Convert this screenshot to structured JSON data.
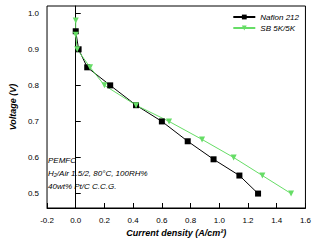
{
  "chart_data": {
    "type": "line",
    "x_label": "Current density (A/cm²)",
    "y_label": "Voltage (V)",
    "annotations": [
      "PEMFC",
      "H₂/Air 1.5/2, 80°C, 100RH%",
      "40wt% Pt/C C.C.G."
    ],
    "series": [
      {
        "name": "Nafion 212",
        "color": "#000000",
        "marker": "square",
        "line_style": "solid",
        "x": [
          0.0,
          0.02,
          0.08,
          0.24,
          0.42,
          0.6,
          0.78,
          0.96,
          1.14,
          1.27
        ],
        "values": [
          0.95,
          0.9,
          0.85,
          0.8,
          0.745,
          0.7,
          0.645,
          0.595,
          0.55,
          0.5
        ]
      },
      {
        "name": "SB 5K/5K",
        "color": "#66dd66",
        "marker": "triangle-down",
        "line_style": "solid",
        "x": [
          0.0,
          0.0,
          0.01,
          0.1,
          0.2,
          0.42,
          0.65,
          0.88,
          1.1,
          1.3,
          1.5
        ],
        "values": [
          0.98,
          0.94,
          0.9,
          0.85,
          0.8,
          0.745,
          0.7,
          0.65,
          0.6,
          0.55,
          0.5
        ]
      }
    ],
    "xlim": [
      -0.2,
      1.6
    ],
    "xticks": [
      -0.2,
      {
        "value": 0,
        "label": "0.0"
      },
      0.2,
      0.4,
      0.6,
      0.8,
      {
        "value": 1,
        "label": "1.0"
      },
      1.2,
      1.4,
      1.6
    ],
    "ylim": [
      0.46,
      1.02
    ],
    "yticks": [
      0.5,
      0.6,
      0.7,
      0.8,
      0.9,
      {
        "value": 1,
        "label": "1.0"
      }
    ],
    "grid": false,
    "legend": "top-right"
  }
}
